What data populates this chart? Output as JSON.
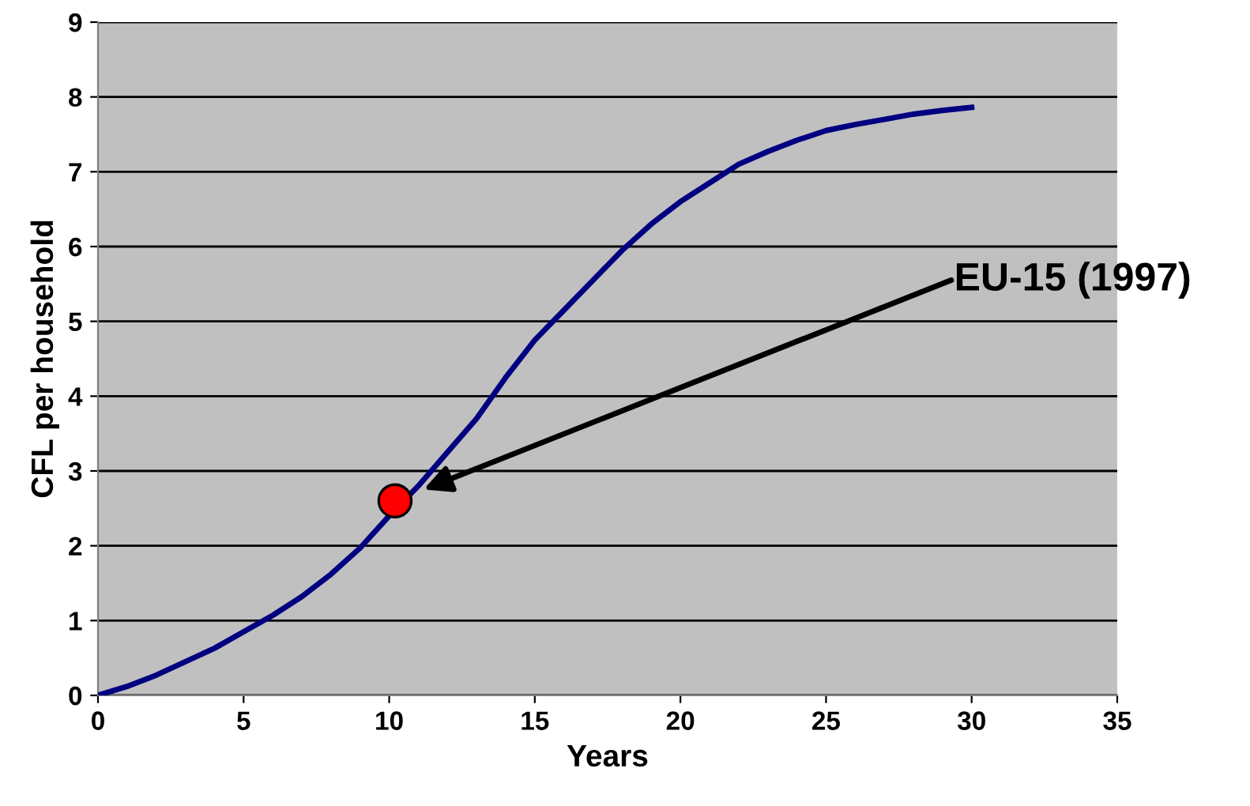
{
  "chart_data": {
    "type": "line",
    "xlabel": "Years",
    "ylabel": "CFL per household",
    "series": [
      {
        "color": "#000080",
        "x": [
          0,
          1,
          2,
          3,
          4,
          5,
          6,
          7,
          8,
          9,
          10,
          11,
          12,
          13,
          14,
          15,
          16,
          17,
          18,
          19,
          20,
          21,
          22,
          23,
          24,
          25,
          26,
          27,
          28,
          29,
          30
        ],
        "values": [
          0,
          0.12,
          0.27,
          0.45,
          0.63,
          0.85,
          1.07,
          1.32,
          1.62,
          1.97,
          2.4,
          2.8,
          3.25,
          3.7,
          4.25,
          4.75,
          5.15,
          5.55,
          5.95,
          6.3,
          6.6,
          6.85,
          7.1,
          7.27,
          7.42,
          7.55,
          7.63,
          7.7,
          7.77,
          7.82,
          7.86
        ]
      },
      {
        "type": "scatter",
        "color": "#ff0000",
        "x": [
          10.2
        ],
        "values": [
          2.6
        ]
      }
    ],
    "annotations": [
      "EU-15 (1997)"
    ],
    "xlim": [
      0,
      35
    ],
    "xticks": [
      0,
      5,
      10,
      15,
      20,
      25,
      30,
      35
    ],
    "ylim": [
      0,
      9
    ],
    "yticks": [
      0,
      1,
      2,
      3,
      4,
      5,
      6,
      7,
      8,
      9
    ],
    "grid": "y",
    "legend": false
  }
}
